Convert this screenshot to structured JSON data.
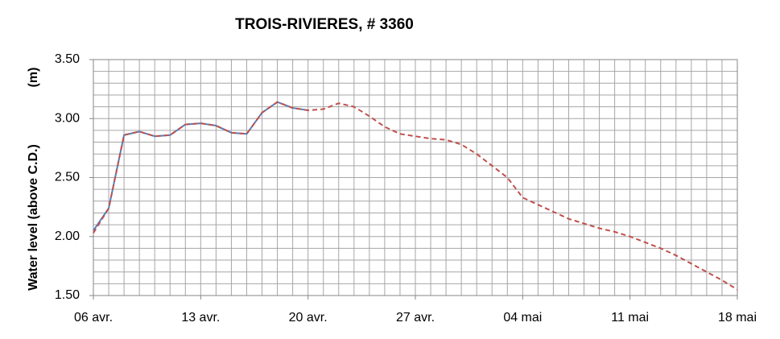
{
  "chart_data": {
    "type": "line",
    "title": "TROIS-RIVIERES, # 3360",
    "ylabel": "Water level (above C.D.)",
    "yunit": "(m)",
    "categories": [
      "06 avr.",
      null,
      null,
      null,
      null,
      null,
      null,
      "13 avr.",
      null,
      null,
      null,
      null,
      null,
      null,
      "20 avr.",
      null,
      null,
      null,
      null,
      null,
      null,
      "27 avr.",
      null,
      null,
      null,
      null,
      null,
      null,
      "04 mai",
      null,
      null,
      null,
      null,
      null,
      null,
      "11 mai",
      null,
      null,
      null,
      null,
      null,
      null,
      "18 mai"
    ],
    "series": [
      {
        "color": "#4f81bd",
        "dash": false,
        "values": [
          2.05,
          2.24,
          2.86,
          2.89,
          2.85,
          2.86,
          2.95,
          2.96,
          2.94,
          2.88,
          2.87,
          3.05,
          3.14,
          3.09,
          3.07,
          null,
          null,
          null,
          null,
          null,
          null,
          null,
          null,
          null,
          null,
          null,
          null,
          null,
          null,
          null,
          null,
          null,
          null,
          null,
          null,
          null,
          null,
          null,
          null,
          null,
          null,
          null,
          null
        ]
      },
      {
        "color": "#c0504d",
        "dash": true,
        "values": [
          2.03,
          2.24,
          2.86,
          2.89,
          2.85,
          2.86,
          2.95,
          2.96,
          2.94,
          2.88,
          2.87,
          3.05,
          3.14,
          3.09,
          3.07,
          3.08,
          3.13,
          3.1,
          3.02,
          2.93,
          2.87,
          2.85,
          2.83,
          2.82,
          2.78,
          2.7,
          2.6,
          2.5,
          2.33,
          2.27,
          2.21,
          2.15,
          2.11,
          2.07,
          2.04,
          2.0,
          1.95,
          1.9,
          1.84,
          1.77,
          1.7,
          1.63,
          1.55
        ]
      }
    ],
    "ylim": [
      1.5,
      3.5
    ],
    "yticks": [
      {
        "value": 1.5,
        "label": "1.50"
      },
      {
        "value": 2.0,
        "label": "2.00"
      },
      {
        "value": 2.5,
        "label": "2.50"
      },
      {
        "value": 3.0,
        "label": "3.00"
      },
      {
        "value": 3.5,
        "label": "3.50"
      }
    ],
    "y_minor_ticks": [
      1.6,
      1.7,
      1.8,
      1.9,
      2.1,
      2.2,
      2.3,
      2.4,
      2.6,
      2.7,
      2.8,
      2.9,
      3.1,
      3.2,
      3.3,
      3.4
    ],
    "grid": true
  }
}
